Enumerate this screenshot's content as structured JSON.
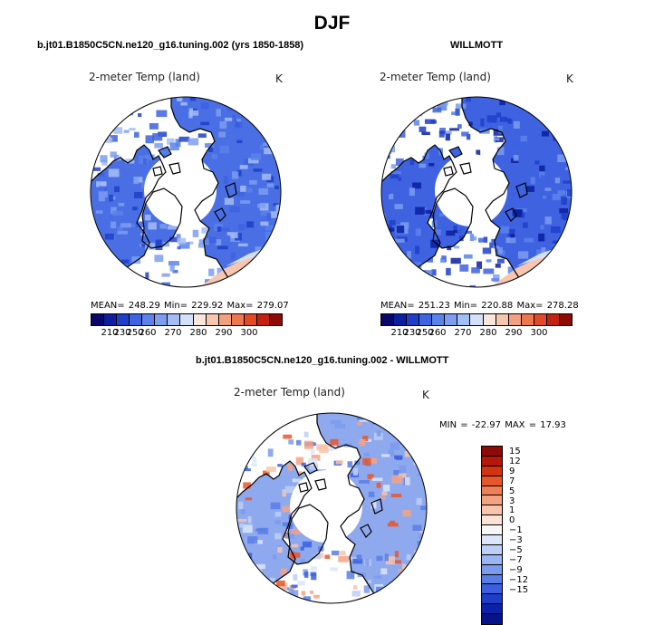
{
  "page_title": "DJF",
  "panels": [
    {
      "case_title": "b.jt01.B1850C5CN.ne120_g16.tuning.002 (yrs 1850-1858)",
      "variable": "2-meter Temp (land)",
      "units": "K",
      "stats": "MEAN= 248.29   Min= 229.92   Max= 279.07"
    },
    {
      "case_title": "WILLMOTT",
      "variable": "2-meter Temp (land)",
      "units": "K",
      "stats": "MEAN= 251.23   Min= 220.88   Max= 278.28"
    },
    {
      "case_title": "b.jt01.B1850C5CN.ne120_g16.tuning.002 - WILLMOTT",
      "variable": "2-meter Temp (land)",
      "units": "K",
      "stats": "MIN = -22.97 MAX =  17.93"
    }
  ],
  "abs_colorbar": {
    "colors": [
      "#08086b",
      "#0b1fa0",
      "#1f3fc8",
      "#3e62e0",
      "#5a82ea",
      "#7c9df0",
      "#a4bdf5",
      "#d2e0f8",
      "#fbe6dc",
      "#f7c6af",
      "#f3a07f",
      "#ee774f",
      "#e24a25",
      "#c2220f",
      "#8e0b05"
    ],
    "labels": [
      "210",
      "230",
      "250",
      "260",
      "270",
      "280",
      "290",
      "300"
    ]
  },
  "diff_colorbar": {
    "colors": [
      "#8e0b05",
      "#b31808",
      "#d23311",
      "#e6582c",
      "#ef7f56",
      "#f4a382",
      "#f8c4ac",
      "#fbe2d6",
      "#f6f6f6",
      "#dce6fa",
      "#bccff6",
      "#9bb5f2",
      "#7b9bee",
      "#5a7ee8",
      "#3a5fe0",
      "#1e3ec8",
      "#0c22a8",
      "#071489"
    ],
    "labels": [
      "15",
      "12",
      "9",
      "7",
      "5",
      "3",
      "1",
      "0",
      "−1",
      "−3",
      "−5",
      "−7",
      "−9",
      "−12",
      "−15"
    ]
  }
}
